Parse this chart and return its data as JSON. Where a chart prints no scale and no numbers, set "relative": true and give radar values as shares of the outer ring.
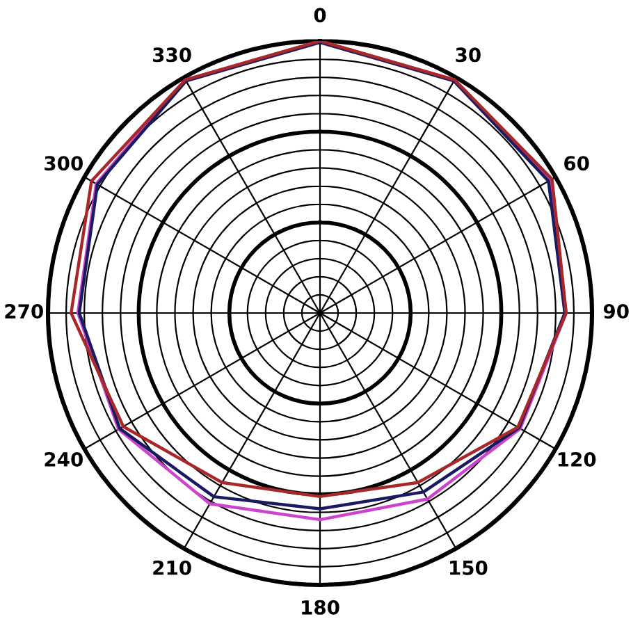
{
  "chart_data": {
    "type": "radar",
    "relative": true,
    "grid": true,
    "marker": "none",
    "line_style": "solid",
    "categories": [
      "0",
      "30",
      "60",
      "90",
      "120",
      "150",
      "180",
      "210",
      "240",
      "270",
      "300",
      "330"
    ],
    "series": [
      {
        "color": "#cc44cc",
        "values": [
          1.0,
          0.99,
          0.975,
          0.905,
          0.85,
          0.79,
          0.76,
          0.81,
          0.855,
          0.89,
          0.95,
          0.99
        ]
      },
      {
        "color": "#1a1a60",
        "values": [
          0.995,
          0.985,
          0.97,
          0.9,
          0.845,
          0.76,
          0.72,
          0.78,
          0.85,
          0.885,
          0.945,
          0.985
        ]
      },
      {
        "color": "#a8282a",
        "values": [
          1.0,
          0.99,
          0.985,
          0.905,
          0.84,
          0.72,
          0.675,
          0.72,
          0.835,
          0.915,
          0.97,
          0.99
        ]
      }
    ]
  }
}
